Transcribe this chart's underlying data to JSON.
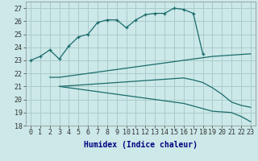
{
  "title": "",
  "xlabel": "Humidex (Indice chaleur)",
  "bg_color": "#cce8e8",
  "grid_color": "#aacccc",
  "line_color": "#1a6b6b",
  "ylim": [
    18,
    27.5
  ],
  "xlim": [
    -0.5,
    23.5
  ],
  "yticks": [
    18,
    19,
    20,
    21,
    22,
    23,
    24,
    25,
    26,
    27
  ],
  "xticks": [
    0,
    1,
    2,
    3,
    4,
    5,
    6,
    7,
    8,
    9,
    10,
    11,
    12,
    13,
    14,
    15,
    16,
    17,
    18,
    19,
    20,
    21,
    22,
    23
  ],
  "curve1_x": [
    0,
    1,
    2,
    3,
    4,
    5,
    6,
    7,
    8,
    9,
    10,
    11,
    12,
    13,
    14,
    15,
    16,
    17,
    18
  ],
  "curve1_y": [
    23.0,
    23.3,
    23.8,
    23.1,
    24.1,
    24.8,
    25.0,
    25.9,
    26.1,
    26.1,
    25.5,
    26.1,
    26.5,
    26.6,
    26.6,
    27.0,
    26.9,
    26.6,
    23.5
  ],
  "curve2_x": [
    2,
    3,
    4,
    5,
    6,
    7,
    8,
    9,
    10,
    11,
    12,
    13,
    14,
    15,
    16,
    17,
    18,
    19,
    20,
    21,
    22,
    23
  ],
  "curve2_y": [
    21.7,
    21.7,
    21.8,
    21.9,
    22.0,
    22.1,
    22.2,
    22.3,
    22.4,
    22.5,
    22.6,
    22.7,
    22.8,
    22.9,
    23.0,
    23.1,
    23.2,
    23.3,
    23.35,
    23.4,
    23.45,
    23.5
  ],
  "curve3_x": [
    3,
    4,
    5,
    6,
    7,
    8,
    9,
    10,
    11,
    12,
    13,
    14,
    15,
    16,
    17,
    18,
    19,
    20,
    21,
    22,
    23
  ],
  "curve3_y": [
    21.0,
    21.05,
    21.1,
    21.15,
    21.2,
    21.25,
    21.3,
    21.35,
    21.4,
    21.45,
    21.5,
    21.55,
    21.6,
    21.65,
    21.5,
    21.3,
    20.9,
    20.4,
    19.8,
    19.55,
    19.4
  ],
  "curve4_x": [
    3,
    4,
    5,
    6,
    7,
    8,
    9,
    10,
    11,
    12,
    13,
    14,
    15,
    16,
    17,
    18,
    19,
    20,
    21,
    22,
    23
  ],
  "curve4_y": [
    21.0,
    20.9,
    20.8,
    20.7,
    20.6,
    20.5,
    20.4,
    20.3,
    20.2,
    20.1,
    20.0,
    19.9,
    19.8,
    19.7,
    19.5,
    19.3,
    19.1,
    19.05,
    19.0,
    18.7,
    18.3
  ],
  "tick_fontsize": 6,
  "xlabel_fontsize": 7
}
